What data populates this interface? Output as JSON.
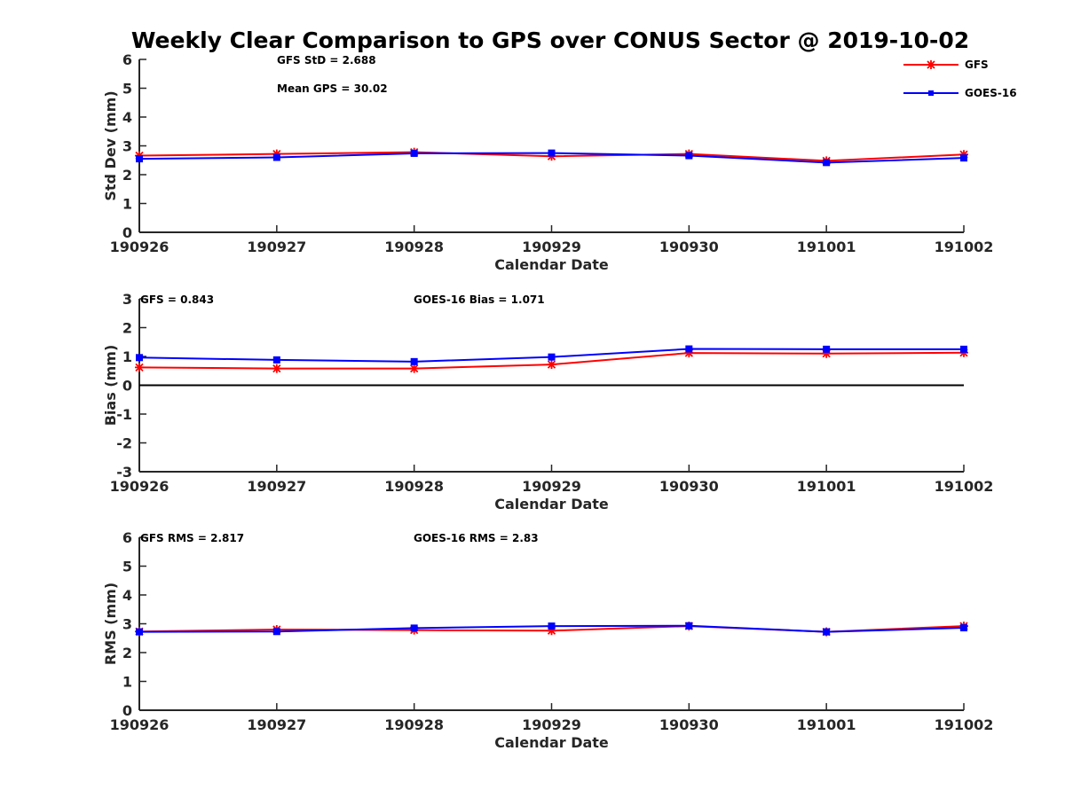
{
  "title": "Weekly Clear Comparison to GPS over CONUS Sector @ 2019-10-02",
  "colors": {
    "gfs": "#ff0000",
    "goes": "#0000ff",
    "axis": "#262626",
    "zero_line": "#000000"
  },
  "legend": {
    "placement": "top-right",
    "entries": [
      "GFS",
      "GOES-16"
    ]
  },
  "chart_data": [
    {
      "type": "line",
      "id": "std",
      "xlabel": "Calendar Date",
      "ylabel": "Std Dev (mm)",
      "categories": [
        "190926",
        "190927",
        "190928",
        "190929",
        "190930",
        "191001",
        "191002"
      ],
      "ylim": [
        0,
        6
      ],
      "yticks": [
        "0",
        "1",
        "2",
        "3",
        "4",
        "5",
        "6"
      ],
      "series": [
        {
          "name": "GFS",
          "marker": "asterisk",
          "values": [
            2.66,
            2.72,
            2.78,
            2.64,
            2.72,
            2.48,
            2.7
          ]
        },
        {
          "name": "GOES-16",
          "marker": "square",
          "values": [
            2.55,
            2.6,
            2.74,
            2.75,
            2.66,
            2.42,
            2.58
          ]
        }
      ],
      "annotations": [
        {
          "text": "GFS StD = 2.688",
          "anchor": "left"
        },
        {
          "text": "Mean GPS = 30.02",
          "anchor": "left"
        }
      ],
      "grid": false
    },
    {
      "type": "line",
      "id": "bias",
      "xlabel": "Calendar Date",
      "ylabel": "Bias (mm)",
      "categories": [
        "190926",
        "190927",
        "190928",
        "190929",
        "190930",
        "191001",
        "191002"
      ],
      "ylim": [
        -3,
        3
      ],
      "yticks": [
        "-3",
        "-2",
        "-1",
        "0",
        "1",
        "2",
        "3"
      ],
      "zero_line": true,
      "series": [
        {
          "name": "GFS",
          "marker": "asterisk",
          "values": [
            0.62,
            0.58,
            0.58,
            0.72,
            1.12,
            1.1,
            1.13
          ]
        },
        {
          "name": "GOES-16",
          "marker": "square",
          "values": [
            0.96,
            0.88,
            0.82,
            0.98,
            1.26,
            1.25,
            1.25
          ]
        }
      ],
      "annotations": [
        {
          "text": "GFS = 0.843",
          "anchor": "left"
        },
        {
          "text": "GOES-16 Bias  = 1.071",
          "anchor": "middle"
        }
      ],
      "grid": false
    },
    {
      "type": "line",
      "id": "rms",
      "xlabel": "Calendar Date",
      "ylabel": "RMS (mm)",
      "categories": [
        "190926",
        "190927",
        "190928",
        "190929",
        "190930",
        "191001",
        "191002"
      ],
      "ylim": [
        0,
        6
      ],
      "yticks": [
        "0",
        "1",
        "2",
        "3",
        "4",
        "5",
        "6"
      ],
      "series": [
        {
          "name": "GFS",
          "marker": "asterisk",
          "values": [
            2.73,
            2.8,
            2.78,
            2.76,
            2.92,
            2.72,
            2.92
          ]
        },
        {
          "name": "GOES-16",
          "marker": "square",
          "values": [
            2.72,
            2.73,
            2.85,
            2.92,
            2.93,
            2.72,
            2.86
          ]
        }
      ],
      "annotations": [
        {
          "text": "GFS RMS = 2.817",
          "anchor": "left"
        },
        {
          "text": "GOES-16 RMS = 2.83",
          "anchor": "middle"
        }
      ],
      "grid": false
    }
  ]
}
